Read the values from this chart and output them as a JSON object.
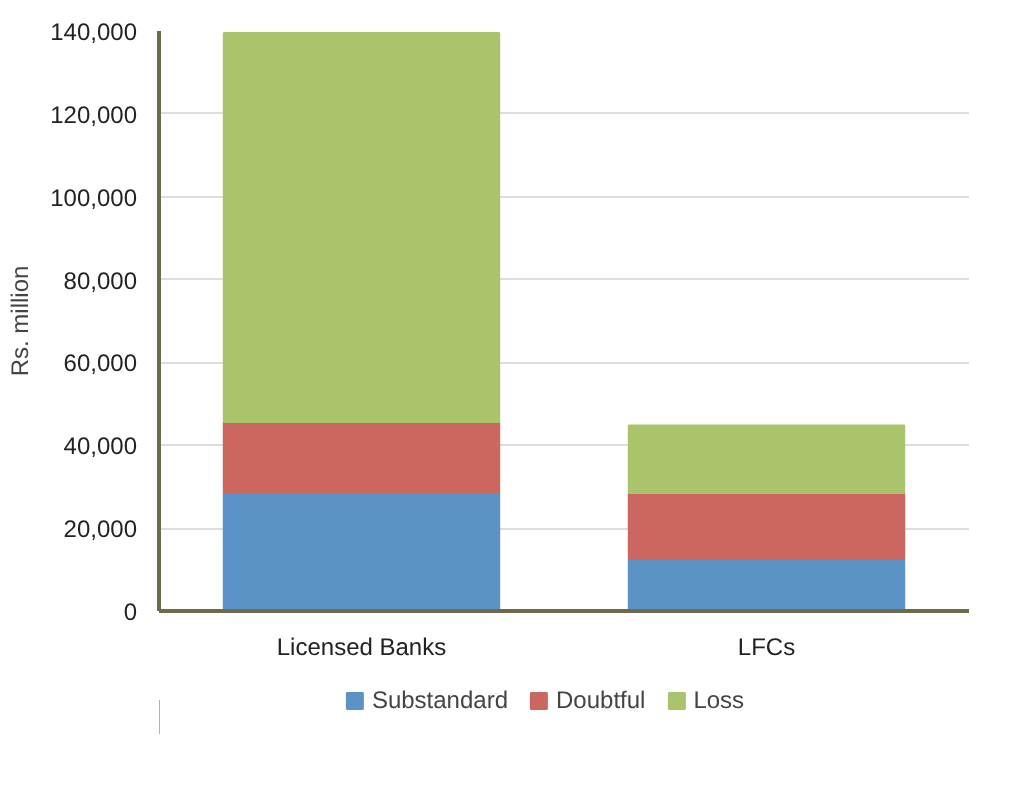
{
  "chart_data": {
    "type": "bar",
    "stacked": true,
    "ylabel": "Rs. million",
    "categories": [
      "Licensed Banks",
      "LFCs"
    ],
    "series": [
      {
        "name": "Substandard",
        "color": "#5b93c7",
        "values": [
          28600,
          12700
        ]
      },
      {
        "name": "Doubtful",
        "color": "#cc6660",
        "values": [
          17000,
          15800
        ]
      },
      {
        "name": "Loss",
        "color": "#aac46c",
        "values": [
          93900,
          16300
        ]
      }
    ],
    "ylim": [
      0,
      140000
    ],
    "yticks": [
      0,
      {
        "value": 20000,
        "label": "20,000"
      },
      {
        "value": 40000,
        "label": "40,000"
      },
      {
        "value": 60000,
        "label": "60,000"
      },
      {
        "value": 80000,
        "label": "80,000"
      },
      {
        "value": 100000,
        "label": "100,000"
      },
      {
        "value": 120000,
        "label": "120,000"
      },
      {
        "value": 140000,
        "label": "140,000"
      }
    ],
    "grid": "y",
    "legend": "bottom"
  }
}
